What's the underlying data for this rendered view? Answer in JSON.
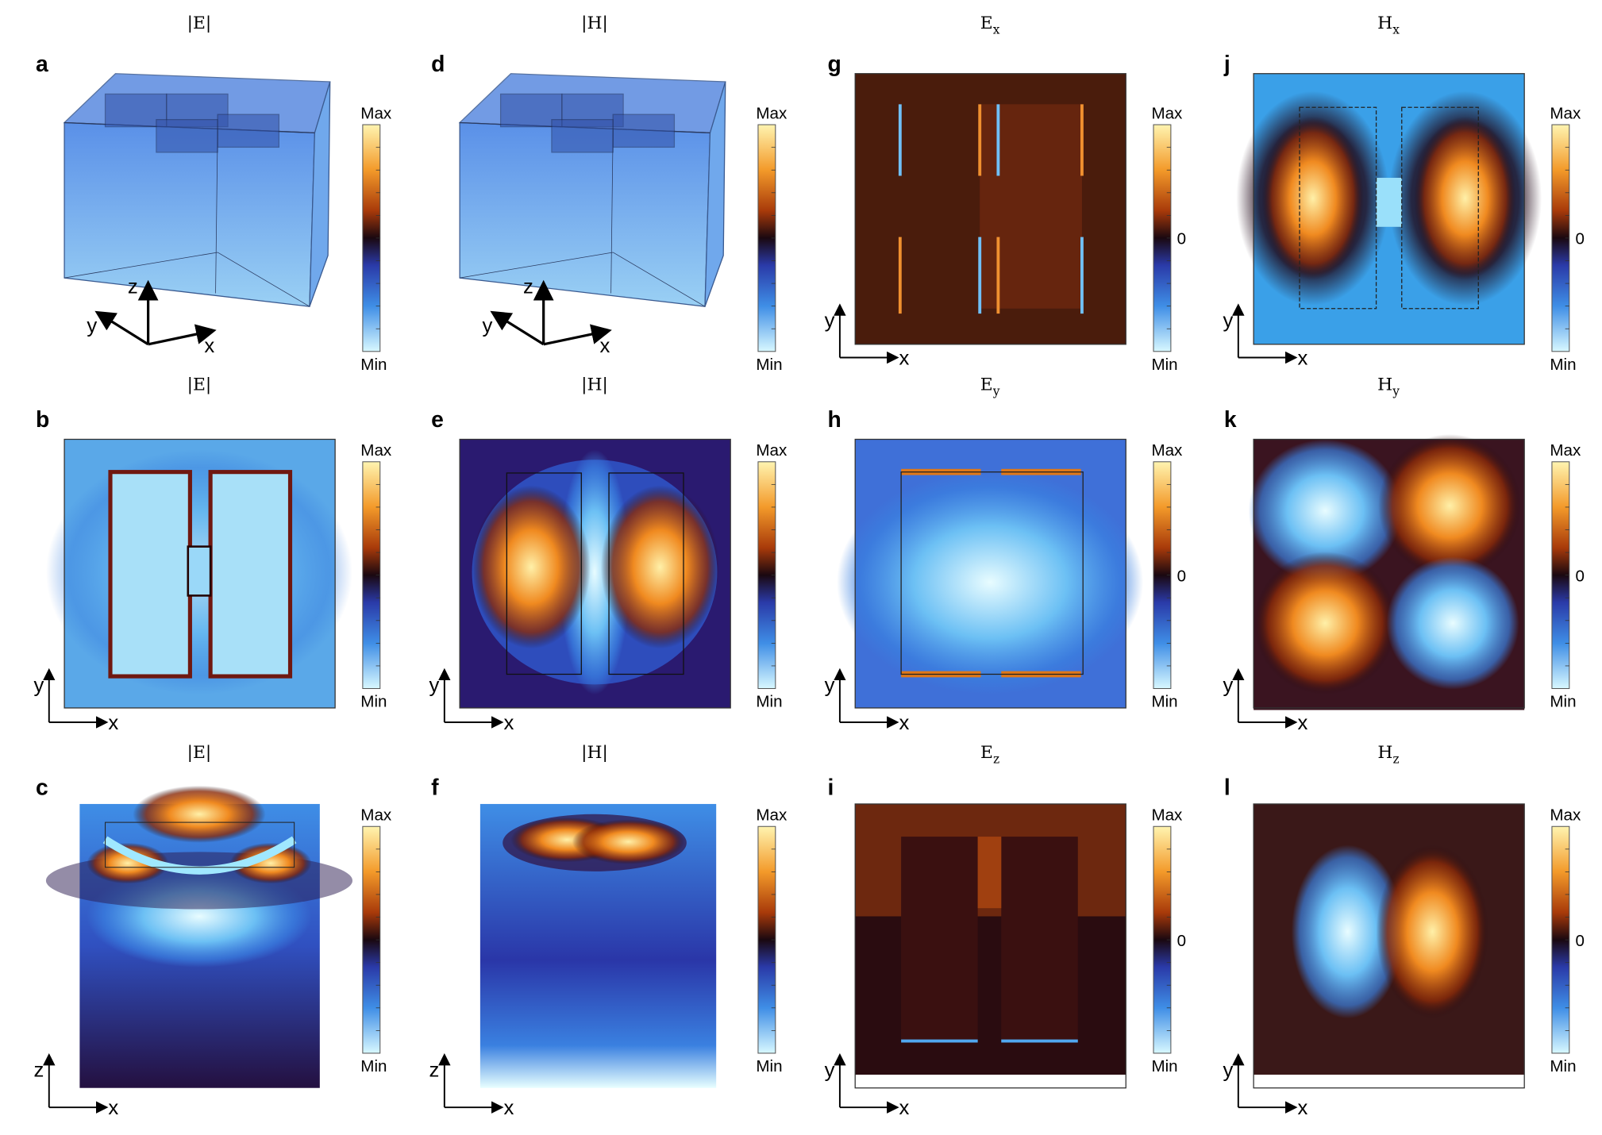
{
  "panels": [
    {
      "letter": "a",
      "title": {
        "main": "|E|"
      },
      "colorbar": {
        "max": "Max",
        "min": "Min"
      },
      "axes": [
        "z",
        "y",
        "x"
      ]
    },
    {
      "letter": "b",
      "title": {
        "main": "|E|"
      },
      "colorbar": {
        "max": "Max",
        "min": "Min"
      },
      "axes": [
        "y",
        "x"
      ]
    },
    {
      "letter": "c",
      "title": {
        "main": "|E|"
      },
      "colorbar": {
        "max": "Max",
        "min": "Min"
      },
      "axes": [
        "z",
        "x"
      ]
    },
    {
      "letter": "d",
      "title": {
        "main": "|H|"
      },
      "colorbar": {
        "max": "Max",
        "min": "Min"
      },
      "axes": [
        "z",
        "y",
        "x"
      ]
    },
    {
      "letter": "e",
      "title": {
        "main": "|H|"
      },
      "colorbar": {
        "max": "Max",
        "min": "Min"
      },
      "axes": [
        "y",
        "x"
      ]
    },
    {
      "letter": "f",
      "title": {
        "main": "|H|"
      },
      "colorbar": {
        "max": "Max",
        "min": "Min"
      },
      "axes": [
        "z",
        "x"
      ]
    },
    {
      "letter": "g",
      "title": {
        "main": "E",
        "sub": "x"
      },
      "colorbar": {
        "max": "Max",
        "zero": "0",
        "min": "Min"
      },
      "axes": [
        "y",
        "x"
      ]
    },
    {
      "letter": "h",
      "title": {
        "main": "E",
        "sub": "y"
      },
      "colorbar": {
        "max": "Max",
        "zero": "0",
        "min": "Min"
      },
      "axes": [
        "y",
        "x"
      ]
    },
    {
      "letter": "i",
      "title": {
        "main": "E",
        "sub": "z"
      },
      "colorbar": {
        "max": "Max",
        "zero": "0",
        "min": "Min"
      },
      "axes": [
        "y",
        "x"
      ]
    },
    {
      "letter": "j",
      "title": {
        "main": "H",
        "sub": "x"
      },
      "colorbar": {
        "max": "Max",
        "zero": "0",
        "min": "Min"
      },
      "axes": [
        "y",
        "x"
      ]
    },
    {
      "letter": "k",
      "title": {
        "main": "H",
        "sub": "y"
      },
      "colorbar": {
        "max": "Max",
        "zero": "0",
        "min": "Min"
      },
      "axes": [
        "y",
        "x"
      ]
    },
    {
      "letter": "l",
      "title": {
        "main": "H",
        "sub": "z"
      },
      "colorbar": {
        "max": "Max",
        "zero": "0",
        "min": "Min"
      },
      "axes": [
        "y",
        "x"
      ]
    }
  ]
}
